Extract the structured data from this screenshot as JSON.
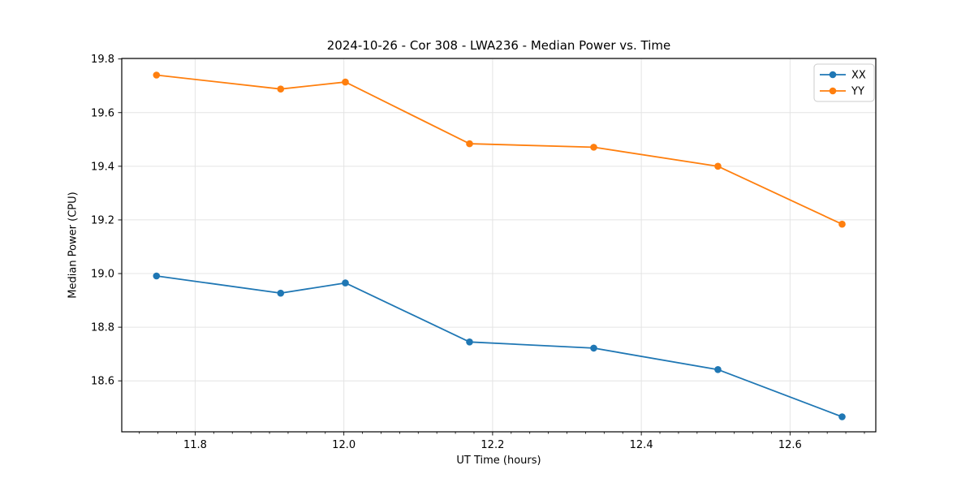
{
  "chart_data": {
    "type": "line",
    "title": "2024-10-26 - Cor 308 - LWA236 - Median Power vs. Time",
    "xlabel": "UT Time (hours)",
    "ylabel": "Median Power (CPU)",
    "x": [
      11.748,
      11.915,
      12.002,
      12.169,
      12.336,
      12.503,
      12.67
    ],
    "series": [
      {
        "name": "XX",
        "color": "#1f77b4",
        "values": [
          18.991,
          18.927,
          18.965,
          18.745,
          18.722,
          18.642,
          18.466
        ]
      },
      {
        "name": "YY",
        "color": "#ff7f0e",
        "values": [
          19.74,
          19.688,
          19.714,
          19.484,
          19.471,
          19.4,
          19.184
        ]
      }
    ],
    "xlim": [
      11.7013,
      12.7153
    ],
    "ylim": [
      18.41,
      19.802
    ],
    "xticks": [
      11.8,
      12.0,
      12.2,
      12.4,
      12.6
    ],
    "xtick_labels": [
      "11.8",
      "12.0",
      "12.2",
      "12.4",
      "12.6"
    ],
    "x_minor_step": 0.025,
    "yticks": [
      18.6,
      18.8,
      19.0,
      19.2,
      19.4,
      19.6,
      19.8
    ],
    "ytick_labels": [
      "18.6",
      "18.8",
      "19.0",
      "19.2",
      "19.4",
      "19.6",
      "19.8"
    ],
    "grid": true,
    "grid_color": "#e4e4e4",
    "axis_color": "#000000",
    "background": "#ffffff",
    "marker": "circle",
    "marker_radius": 4.3,
    "line_width": 1.8,
    "legend": {
      "position": "top-right",
      "entries": [
        "XX",
        "YY"
      ]
    }
  },
  "layout_labels": {
    "figure_name": "median-power-vs-time-chart"
  }
}
